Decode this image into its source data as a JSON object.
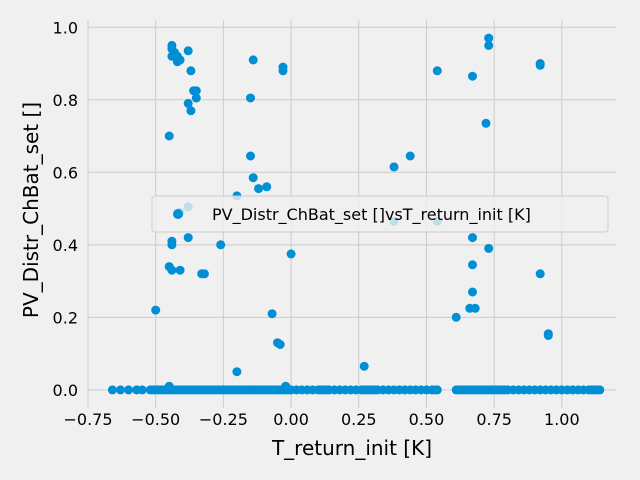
{
  "chart_data": {
    "type": "scatter",
    "title": "",
    "xlabel": "T_return_init [K]",
    "ylabel": "PV_Distr_ChBat_set []",
    "xlim": [
      -0.75,
      1.2
    ],
    "ylim": [
      -0.05,
      1.02
    ],
    "xticks": [
      -0.75,
      -0.5,
      -0.25,
      0.0,
      0.25,
      0.5,
      0.75,
      1.0
    ],
    "xtick_labels": [
      "−0.75",
      "−0.50",
      "−0.25",
      "0.00",
      "0.25",
      "0.50",
      "0.75",
      "1.00"
    ],
    "yticks": [
      0.0,
      0.2,
      0.4,
      0.6,
      0.8,
      1.0
    ],
    "ytick_labels": [
      "0.0",
      "0.2",
      "0.4",
      "0.6",
      "0.8",
      "1.0"
    ],
    "grid": true,
    "legend": {
      "placement": "center-right",
      "entries": [
        "PV_Distr_ChBat_set []vsT_return_init [K]"
      ]
    },
    "colors": {
      "marker": "#008fd5",
      "background": "#f0f0f0",
      "grid": "#cbcbcb"
    },
    "series": [
      {
        "name": "PV_Distr_ChBat_set []vsT_return_init [K]",
        "points": [
          [
            -0.44,
            0.95
          ],
          [
            -0.44,
            0.94
          ],
          [
            -0.43,
            0.93
          ],
          [
            -0.44,
            0.92
          ],
          [
            -0.42,
            0.92
          ],
          [
            -0.41,
            0.91
          ],
          [
            -0.42,
            0.905
          ],
          [
            -0.38,
            0.935
          ],
          [
            -0.37,
            0.88
          ],
          [
            -0.14,
            0.91
          ],
          [
            -0.03,
            0.89
          ],
          [
            -0.03,
            0.88
          ],
          [
            -0.36,
            0.825
          ],
          [
            -0.35,
            0.825
          ],
          [
            -0.35,
            0.805
          ],
          [
            -0.38,
            0.79
          ],
          [
            -0.37,
            0.77
          ],
          [
            -0.15,
            0.805
          ],
          [
            -0.45,
            0.7
          ],
          [
            -0.15,
            0.645
          ],
          [
            -0.14,
            0.585
          ],
          [
            -0.09,
            0.56
          ],
          [
            -0.12,
            0.555
          ],
          [
            -0.2,
            0.535
          ],
          [
            -0.41,
            0.49
          ],
          [
            -0.38,
            0.505
          ],
          [
            -0.44,
            0.41
          ],
          [
            -0.44,
            0.4
          ],
          [
            -0.38,
            0.42
          ],
          [
            -0.26,
            0.4
          ],
          [
            0.0,
            0.375
          ],
          [
            -0.45,
            0.34
          ],
          [
            -0.44,
            0.33
          ],
          [
            -0.41,
            0.33
          ],
          [
            -0.33,
            0.32
          ],
          [
            -0.32,
            0.32
          ],
          [
            -0.5,
            0.22
          ],
          [
            -0.07,
            0.21
          ],
          [
            -0.05,
            0.13
          ],
          [
            -0.04,
            0.125
          ],
          [
            -0.2,
            0.05
          ],
          [
            -0.02,
            0.01
          ],
          [
            -0.45,
            0.01
          ],
          [
            0.27,
            0.065
          ],
          [
            0.38,
            0.615
          ],
          [
            0.44,
            0.645
          ],
          [
            0.38,
            0.465
          ],
          [
            0.54,
            0.465
          ],
          [
            0.54,
            0.88
          ],
          [
            0.61,
            0.2
          ],
          [
            0.66,
            0.225
          ],
          [
            0.68,
            0.225
          ],
          [
            0.67,
            0.865
          ],
          [
            0.67,
            0.42
          ],
          [
            0.67,
            0.345
          ],
          [
            0.67,
            0.27
          ],
          [
            0.72,
            0.735
          ],
          [
            0.73,
            0.97
          ],
          [
            0.73,
            0.95
          ],
          [
            0.73,
            0.39
          ],
          [
            0.92,
            0.9
          ],
          [
            0.92,
            0.895
          ],
          [
            0.92,
            0.32
          ],
          [
            0.95,
            0.155
          ],
          [
            0.95,
            0.15
          ]
        ],
        "zero_points_x": [
          -0.66,
          -0.63,
          -0.6,
          -0.57,
          -0.55,
          -0.52,
          -0.51,
          -0.5,
          -0.49,
          -0.48,
          -0.47,
          -0.46,
          -0.45,
          -0.44,
          -0.43,
          -0.42,
          -0.41,
          -0.4,
          -0.39,
          -0.38,
          -0.37,
          -0.36,
          -0.35,
          -0.34,
          -0.33,
          -0.32,
          -0.31,
          -0.3,
          -0.29,
          -0.28,
          -0.27,
          -0.26,
          -0.25,
          -0.24,
          -0.23,
          -0.22,
          -0.21,
          -0.2,
          -0.19,
          -0.18,
          -0.17,
          -0.16,
          -0.15,
          -0.14,
          -0.13,
          -0.12,
          -0.11,
          -0.1,
          -0.09,
          -0.08,
          -0.07,
          -0.06,
          -0.05,
          -0.04,
          -0.03,
          -0.02,
          -0.01,
          0.0,
          0.02,
          0.04,
          0.06,
          0.08,
          0.1,
          0.11,
          0.12,
          0.13,
          0.14,
          0.16,
          0.18,
          0.2,
          0.22,
          0.24,
          0.26,
          0.27,
          0.28,
          0.29,
          0.3,
          0.31,
          0.32,
          0.34,
          0.36,
          0.38,
          0.4,
          0.42,
          0.44,
          0.46,
          0.48,
          0.5,
          0.52,
          0.53,
          0.54,
          0.61,
          0.62,
          0.63,
          0.64,
          0.65,
          0.66,
          0.67,
          0.68,
          0.69,
          0.7,
          0.71,
          0.72,
          0.73,
          0.74,
          0.75,
          0.76,
          0.77,
          0.78,
          0.79,
          0.8,
          0.82,
          0.84,
          0.86,
          0.88,
          0.9,
          0.92,
          0.94,
          0.96,
          0.98,
          1.0,
          1.02,
          1.04,
          1.06,
          1.08,
          1.1,
          1.11,
          1.12,
          1.13,
          1.14
        ]
      }
    ]
  }
}
